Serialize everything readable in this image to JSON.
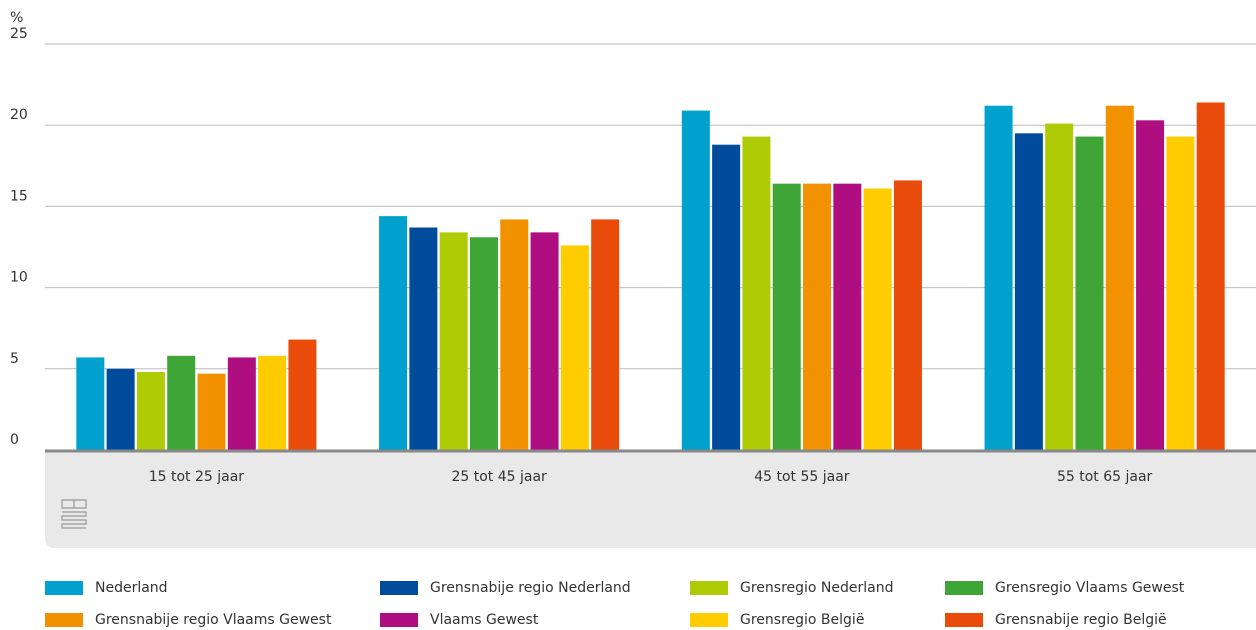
{
  "chart_data": {
    "type": "bar",
    "y_label": "%",
    "categories": [
      "15 tot 25 jaar",
      "25 tot 45 jaar",
      "45 tot 55 jaar",
      "55 tot 65 jaar"
    ],
    "series": [
      {
        "name": "Nederland",
        "color": "#00a1cd",
        "values": [
          5.7,
          14.4,
          20.9,
          21.2
        ]
      },
      {
        "name": "Grensnabije regio Nederland",
        "color": "#004b9b",
        "values": [
          5.0,
          13.7,
          18.8,
          19.5
        ]
      },
      {
        "name": "Grensregio Nederland",
        "color": "#afcb05",
        "values": [
          4.8,
          13.4,
          19.3,
          20.1
        ]
      },
      {
        "name": "Grensregio Vlaams Gewest",
        "color": "#3ea536",
        "values": [
          5.8,
          13.1,
          16.4,
          19.3
        ]
      },
      {
        "name": "Grensnabije regio Vlaams Gewest",
        "color": "#f39200",
        "values": [
          4.7,
          14.2,
          16.4,
          21.2
        ]
      },
      {
        "name": "Vlaams Gewest",
        "color": "#af0e80",
        "values": [
          5.7,
          13.4,
          16.4,
          20.3
        ]
      },
      {
        "name": "Grensregio België",
        "color": "#ffcc00",
        "values": [
          5.8,
          12.6,
          16.1,
          19.3
        ]
      },
      {
        "name": "Grensnabije regio België",
        "color": "#e94c0a",
        "values": [
          6.8,
          14.2,
          16.6,
          21.4
        ]
      }
    ],
    "ylim": [
      0,
      25
    ],
    "yticks": [
      0,
      5,
      10,
      15,
      20,
      25
    ],
    "grid": true,
    "legend": "bottom"
  }
}
